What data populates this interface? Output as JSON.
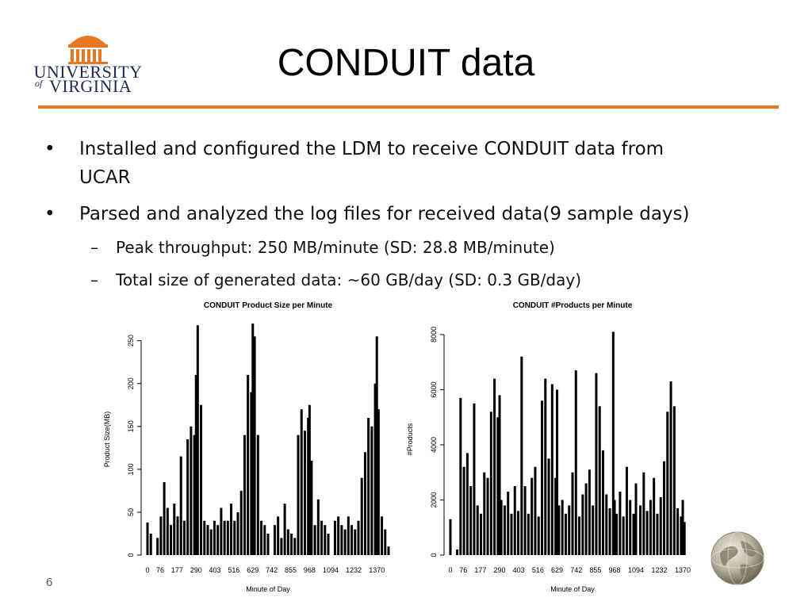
{
  "slide": {
    "title": "CONDUIT data",
    "page_number": "6",
    "logo": {
      "line1": "UNIVERSITY",
      "line2_prefix": "of",
      "line2": "VIRGINIA",
      "icon": "rotunda-icon"
    },
    "bullets": [
      {
        "text": "Installed and configured the LDM to receive CONDUIT data from",
        "text2": "UCAR"
      },
      {
        "text": "Parsed and analyzed the log files for received data(9 sample days)"
      }
    ],
    "sub_bullets": [
      {
        "text": "Peak throughput: 250 MB/minute (SD: 28.8 MB/minute)"
      },
      {
        "text": "Total size of generated data: ~60 GB/day (SD: 0.3 GB/day)"
      }
    ],
    "globe_icon": "globe-icon",
    "accent_color": "#e87722"
  },
  "chart_data": [
    {
      "type": "bar",
      "title": "CONDUIT Product Size per Minute",
      "xlabel": "Minute of Day",
      "ylabel": "Product Size(MB)",
      "ylim": [
        0,
        270
      ],
      "yticks": [
        0,
        50,
        100,
        150,
        200,
        250
      ],
      "xticks": [
        0,
        76,
        177,
        290,
        403,
        516,
        629,
        742,
        855,
        968,
        1094,
        1232,
        1370
      ],
      "xlim": [
        0,
        1440
      ],
      "series": [
        {
          "x": [
            0,
            20,
            40,
            60,
            80,
            100,
            120,
            140,
            160,
            180,
            200,
            220,
            240,
            260,
            280,
            290,
            300,
            320,
            340,
            360,
            380,
            400,
            420,
            440,
            460,
            480,
            500,
            520,
            540,
            560,
            580,
            600,
            620,
            629,
            640,
            660,
            680,
            700,
            720,
            740,
            760,
            780,
            800,
            820,
            840,
            860,
            880,
            900,
            920,
            940,
            960,
            968,
            980,
            1000,
            1020,
            1040,
            1060,
            1080,
            1094,
            1120,
            1140,
            1160,
            1180,
            1200,
            1220,
            1240,
            1260,
            1280,
            1300,
            1320,
            1340,
            1360,
            1370,
            1380,
            1400,
            1420,
            1440
          ],
          "values": [
            38,
            25,
            0,
            20,
            45,
            85,
            55,
            35,
            60,
            45,
            115,
            40,
            135,
            150,
            140,
            210,
            268,
            175,
            40,
            35,
            30,
            40,
            35,
            55,
            40,
            40,
            60,
            40,
            50,
            75,
            140,
            210,
            190,
            270,
            255,
            140,
            40,
            35,
            25,
            0,
            35,
            45,
            20,
            60,
            30,
            25,
            20,
            140,
            170,
            145,
            160,
            175,
            110,
            35,
            65,
            40,
            35,
            25,
            0,
            40,
            45,
            35,
            30,
            45,
            35,
            30,
            40,
            90,
            120,
            160,
            150,
            200,
            255,
            170,
            45,
            30,
            10
          ]
        }
      ]
    },
    {
      "type": "bar",
      "title": "CONDUIT #Products per Minute",
      "xlabel": "Minute of Day",
      "ylabel": "#Products",
      "ylim": [
        0,
        8400
      ],
      "yticks": [
        0,
        2000,
        4000,
        6000,
        8000
      ],
      "xticks": [
        0,
        76,
        177,
        290,
        403,
        516,
        629,
        742,
        855,
        968,
        1094,
        1232,
        1370
      ],
      "xlim": [
        0,
        1440
      ],
      "series": [
        {
          "x": [
            0,
            20,
            40,
            60,
            80,
            100,
            120,
            140,
            160,
            180,
            200,
            220,
            240,
            260,
            280,
            290,
            300,
            320,
            340,
            360,
            380,
            400,
            420,
            440,
            460,
            480,
            500,
            520,
            540,
            560,
            580,
            600,
            620,
            629,
            640,
            660,
            680,
            700,
            720,
            740,
            760,
            780,
            800,
            820,
            840,
            860,
            880,
            900,
            920,
            940,
            960,
            968,
            980,
            1000,
            1020,
            1040,
            1060,
            1080,
            1094,
            1120,
            1140,
            1160,
            1180,
            1200,
            1220,
            1240,
            1260,
            1280,
            1300,
            1320,
            1340,
            1360,
            1370,
            1380,
            1400,
            1420,
            1440
          ],
          "values": [
            1300,
            0,
            200,
            5700,
            3200,
            3700,
            2500,
            5500,
            1800,
            1500,
            3000,
            2800,
            5200,
            6400,
            5000,
            5800,
            2000,
            1800,
            2300,
            1500,
            2500,
            1600,
            7200,
            2500,
            1500,
            2800,
            3200,
            1400,
            5600,
            6400,
            3500,
            6200,
            2800,
            6000,
            1800,
            2000,
            1500,
            1800,
            3000,
            6700,
            1400,
            2200,
            2600,
            3100,
            1800,
            6600,
            5400,
            3800,
            2200,
            1700,
            8100,
            2000,
            1500,
            2300,
            1400,
            3200,
            2000,
            1500,
            2600,
            1800,
            3000,
            1600,
            2000,
            2800,
            1500,
            2100,
            3400,
            5200,
            6300,
            5400,
            1700,
            1400,
            2000,
            1200,
            0,
            0,
            0
          ]
        }
      ]
    }
  ]
}
